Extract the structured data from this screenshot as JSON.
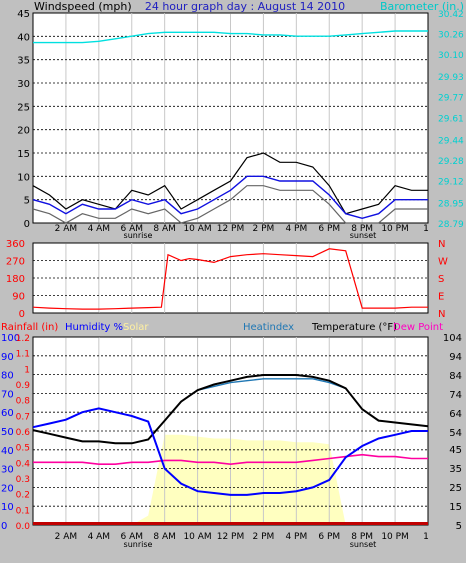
{
  "top_panel": {
    "title_left": "Windspeed (mph)",
    "title_center": "24 hour graph day : August 14 2010",
    "title_right": "Barometer (in.)",
    "colors": {
      "wind_avg": "#1010e0",
      "wind_gust": "#000000",
      "wind_gray": "#666666",
      "barometer": "#00e0e0"
    }
  },
  "mid_panel": {
    "direction_labels": [
      "N",
      "W",
      "S",
      "E",
      "N"
    ],
    "colors": {
      "direction": "#ff0000"
    }
  },
  "bottom_panel": {
    "header": {
      "rainfall": "Rainfall (in)",
      "humidity": "Humidity %",
      "solar": "Solar",
      "heatindex": "Heatindex",
      "temperature": "Temperature (°F)",
      "dewpoint": "Dew Point"
    },
    "colors": {
      "rainfall": "#ff0000",
      "humidity": "#0000ff",
      "solar": "#ffffc0",
      "heatindex": "#1f77b4",
      "temperature": "#000000",
      "dewpoint": "#ff00a0"
    }
  },
  "x_axis": {
    "tick_labels": [
      "2 AM",
      "4 AM",
      "6 AM",
      "8 AM",
      "10 AM",
      "12 PM",
      "2 PM",
      "4 PM",
      "6 PM",
      "8 PM",
      "10 PM",
      "1"
    ],
    "sunrise_label": "sunrise",
    "sunset_label": "sunset"
  },
  "chart_data": [
    {
      "type": "line",
      "title": "24 hour graph day : August 14 2010",
      "ylabel": "Windspeed (mph)",
      "ylabel_right": "Barometer (in.)",
      "ylim": [
        0,
        45
      ],
      "yticks": [
        0,
        5,
        10,
        15,
        20,
        25,
        30,
        35,
        40,
        45
      ],
      "ylim_right": [
        28.79,
        30.42
      ],
      "yticks_right": [
        "28.79",
        "28.95",
        "29.12",
        "29.28",
        "29.44",
        "29.61",
        "29.77",
        "29.93",
        "30.10",
        "30.26",
        "30.42"
      ],
      "x_hours": [
        0,
        1,
        2,
        3,
        4,
        5,
        6,
        7,
        8,
        9,
        10,
        11,
        12,
        13,
        14,
        15,
        16,
        17,
        18,
        19,
        20,
        21,
        22,
        23,
        24
      ],
      "series": [
        {
          "key": "gust",
          "values": [
            8,
            6,
            3,
            5,
            4,
            3,
            7,
            6,
            8,
            3,
            5,
            7,
            9,
            14,
            15,
            13,
            13,
            12,
            8,
            2,
            3,
            4,
            8,
            7,
            7
          ]
        },
        {
          "key": "avg",
          "values": [
            5,
            4,
            2,
            4,
            3,
            3,
            5,
            4,
            5,
            2,
            3,
            5,
            7,
            10,
            10,
            9,
            9,
            9,
            6,
            2,
            1,
            2,
            5,
            5,
            5
          ]
        },
        {
          "key": "baro",
          "axis": "right",
          "values": [
            30.19,
            30.19,
            30.19,
            30.19,
            30.2,
            30.22,
            30.24,
            30.26,
            30.27,
            30.27,
            30.27,
            30.27,
            30.26,
            30.26,
            30.25,
            30.25,
            30.24,
            30.24,
            30.24,
            30.25,
            30.26,
            30.27,
            30.28,
            30.28,
            30.28
          ]
        }
      ]
    },
    {
      "type": "line",
      "ylim": [
        0,
        360
      ],
      "yticks": [
        0,
        90,
        180,
        270,
        360
      ],
      "x_hours": [
        0,
        1,
        2,
        3,
        4,
        5,
        6,
        7,
        7.8,
        8.2,
        9,
        9.5,
        10,
        11,
        12,
        13,
        14,
        15,
        16,
        17,
        18,
        19,
        20,
        21,
        22,
        23,
        24
      ],
      "series": [
        {
          "key": "direction",
          "values": [
            30,
            25,
            22,
            20,
            20,
            22,
            25,
            28,
            30,
            300,
            270,
            280,
            275,
            260,
            290,
            300,
            305,
            300,
            295,
            290,
            330,
            320,
            25,
            25,
            25,
            30,
            30
          ]
        }
      ]
    },
    {
      "type": "line",
      "ylabel": "Rainfall (in) / Humidity %",
      "ylabel_right": "Temperature (°F)",
      "ylim": [
        0,
        100
      ],
      "yticks": [
        0,
        10,
        20,
        30,
        40,
        50,
        60,
        70,
        80,
        90,
        100
      ],
      "ylim_rain": [
        0,
        1.2
      ],
      "yticks_rain": [
        "0.0",
        "0.1",
        "0.2",
        "0.3",
        "0.4",
        "0.5",
        "0.6",
        "0.7",
        "0.8",
        "0.9",
        "1",
        "1.1",
        "1.2"
      ],
      "ylim_right": [
        5,
        104
      ],
      "yticks_right": [
        5,
        15,
        25,
        35,
        45,
        54,
        64,
        74,
        84,
        94,
        104
      ],
      "x_hours": [
        0,
        1,
        2,
        3,
        4,
        5,
        6,
        7,
        8,
        9,
        10,
        11,
        12,
        13,
        14,
        15,
        16,
        17,
        18,
        19,
        20,
        21,
        22,
        23,
        24
      ],
      "series": [
        {
          "key": "humidity",
          "values": [
            52,
            54,
            56,
            60,
            62,
            60,
            58,
            55,
            30,
            22,
            18,
            17,
            16,
            16,
            17,
            17,
            18,
            20,
            24,
            36,
            42,
            46,
            48,
            50,
            50
          ]
        },
        {
          "key": "temperature",
          "axis": "right",
          "values": [
            55,
            53,
            51,
            49,
            49,
            48,
            48,
            50,
            60,
            70,
            76,
            79,
            81,
            83,
            84,
            84,
            84,
            83,
            81,
            77,
            66,
            60,
            59,
            58,
            57
          ]
        },
        {
          "key": "heatindex",
          "axis": "right",
          "values": [
            null,
            null,
            null,
            null,
            null,
            null,
            null,
            null,
            null,
            null,
            76,
            78,
            80,
            81,
            82,
            82,
            82,
            82,
            80,
            77,
            null,
            null,
            null,
            null,
            null
          ]
        },
        {
          "key": "dewpoint",
          "axis": "right",
          "values": [
            38,
            38,
            38,
            38,
            37,
            37,
            38,
            38,
            39,
            39,
            38,
            38,
            37,
            38,
            38,
            38,
            38,
            39,
            40,
            41,
            42,
            41,
            41,
            40,
            40
          ]
        },
        {
          "key": "solar",
          "values": [
            0,
            0,
            0,
            0,
            0,
            0,
            0,
            5,
            48,
            48,
            47,
            46,
            46,
            45,
            45,
            45,
            44,
            44,
            43,
            0,
            0,
            0,
            0,
            0,
            0
          ]
        },
        {
          "key": "rainfall",
          "values": [
            0,
            0,
            0,
            0,
            0,
            0,
            0,
            0,
            0,
            0,
            0,
            0,
            0,
            0,
            0,
            0,
            0,
            0,
            0,
            0,
            0,
            0,
            0,
            0,
            0
          ]
        }
      ]
    }
  ]
}
